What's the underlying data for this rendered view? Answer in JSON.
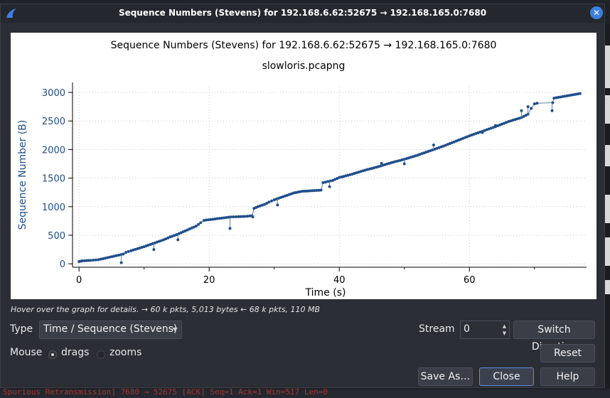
{
  "window": {
    "title": "Sequence Numbers (Stevens) for 192.168.6.62:52675 → 192.168.165.0:7680",
    "close_glyph": "✕"
  },
  "background": {
    "bottom_text": "Spurious Retransmission] 7680 → 52675 [ACK] Seq=1 Ack=1 Win=517 Len=0"
  },
  "chart_data": {
    "type": "scatter",
    "title": "Sequence Numbers (Stevens) for 192.168.6.62:52675 → 192.168.165.0:7680",
    "subtitle": "slowloris.pcapng",
    "xlabel": "Time (s)",
    "ylabel": "Sequence Number (B)",
    "xlim": [
      -1,
      78
    ],
    "ylim": [
      -60,
      3100
    ],
    "xticks": [
      0,
      20,
      40,
      60
    ],
    "yticks": [
      0,
      500,
      1000,
      1500,
      2000,
      2500,
      3000
    ],
    "grid": true,
    "color": "#1f4e8c",
    "series": [
      {
        "values": [
          [
            0,
            40
          ],
          [
            0.3,
            45
          ],
          [
            0.5,
            52
          ],
          [
            1.8,
            60
          ],
          [
            2.2,
            65
          ],
          [
            2.6,
            68
          ],
          [
            3.0,
            72
          ],
          [
            6.8,
            170
          ],
          [
            7.2,
            200
          ],
          [
            8.0,
            230
          ],
          [
            9.0,
            265
          ],
          [
            10.0,
            300
          ],
          [
            11.0,
            340
          ],
          [
            12.0,
            380
          ],
          [
            13.0,
            420
          ],
          [
            14.0,
            470
          ],
          [
            15.0,
            510
          ],
          [
            16.0,
            560
          ],
          [
            17.0,
            610
          ],
          [
            18.0,
            660
          ],
          [
            18.7,
            720
          ],
          [
            19.2,
            760
          ],
          [
            23.3,
            820
          ],
          [
            24.5,
            825
          ],
          [
            25.5,
            830
          ],
          [
            26.6,
            840
          ],
          [
            26.9,
            970
          ],
          [
            27.5,
            1000
          ],
          [
            28.5,
            1040
          ],
          [
            29.2,
            1080
          ],
          [
            30.0,
            1120
          ],
          [
            31.0,
            1160
          ],
          [
            32.0,
            1200
          ],
          [
            33.0,
            1240
          ],
          [
            34.3,
            1270
          ],
          [
            35.2,
            1275
          ],
          [
            37.2,
            1290
          ],
          [
            37.5,
            1420
          ],
          [
            39.0,
            1460
          ],
          [
            40.0,
            1510
          ],
          [
            42.0,
            1570
          ],
          [
            44.0,
            1640
          ],
          [
            46.0,
            1700
          ],
          [
            48.0,
            1770
          ],
          [
            50.0,
            1830
          ],
          [
            52.0,
            1900
          ],
          [
            54.0,
            1980
          ],
          [
            56.0,
            2060
          ],
          [
            58.0,
            2150
          ],
          [
            60.0,
            2240
          ],
          [
            62.0,
            2320
          ],
          [
            64.0,
            2400
          ],
          [
            66.0,
            2490
          ],
          [
            68.0,
            2560
          ],
          [
            69.0,
            2620
          ],
          [
            69.5,
            2720
          ],
          [
            70.0,
            2800
          ],
          [
            70.4,
            2810
          ],
          [
            72.8,
            2820
          ],
          [
            73.0,
            2900
          ],
          [
            74.0,
            2920
          ],
          [
            75.0,
            2940
          ],
          [
            76.0,
            2960
          ],
          [
            77.0,
            2980
          ]
        ]
      }
    ],
    "outliers": [
      [
        6.5,
        20
      ],
      [
        11.5,
        250
      ],
      [
        15.2,
        420
      ],
      [
        23.2,
        620
      ],
      [
        26.7,
        820
      ],
      [
        30.5,
        1030
      ],
      [
        38.5,
        1350
      ],
      [
        46.5,
        1760
      ],
      [
        50.0,
        1750
      ],
      [
        54.5,
        2080
      ],
      [
        62.0,
        2300
      ],
      [
        64.0,
        2420
      ],
      [
        68.0,
        2680
      ],
      [
        69.0,
        2750
      ],
      [
        72.7,
        2680
      ]
    ]
  },
  "hint_text": "Hover over the graph for details. → 60 k pkts, 5,013 bytes ← 68 k pkts, 110 MB",
  "controls": {
    "type_label": "Type",
    "type_value": "Time / Sequence (Stevens)",
    "stream_label": "Stream",
    "stream_value": "0",
    "switch_direction": "Switch Direction",
    "mouse_label": "Mouse",
    "drags_label": "drags",
    "zooms_label": "zooms",
    "reset": "Reset",
    "save_as": "Save As…",
    "close": "Close",
    "help": "Help"
  }
}
